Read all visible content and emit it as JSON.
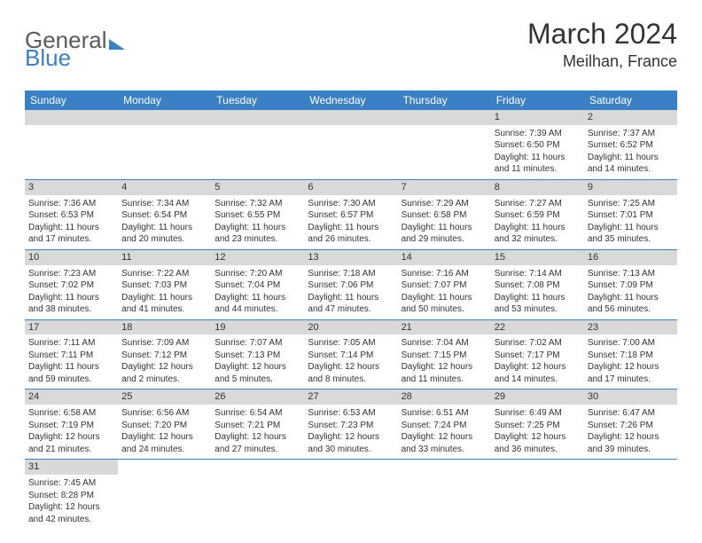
{
  "brand": {
    "part1": "General",
    "part2": "Blue"
  },
  "title": "March 2024",
  "location": "Meilhan, France",
  "colors": {
    "header_bg": "#3b7fc4",
    "header_fg": "#ffffff",
    "daynum_bg": "#d9d9d9",
    "rule": "#3b7fc4",
    "text": "#333333"
  },
  "day_headers": [
    "Sunday",
    "Monday",
    "Tuesday",
    "Wednesday",
    "Thursday",
    "Friday",
    "Saturday"
  ],
  "weeks": [
    [
      null,
      null,
      null,
      null,
      null,
      {
        "n": "1",
        "sr": "Sunrise: 7:39 AM",
        "ss": "Sunset: 6:50 PM",
        "d1": "Daylight: 11 hours",
        "d2": "and 11 minutes."
      },
      {
        "n": "2",
        "sr": "Sunrise: 7:37 AM",
        "ss": "Sunset: 6:52 PM",
        "d1": "Daylight: 11 hours",
        "d2": "and 14 minutes."
      }
    ],
    [
      {
        "n": "3",
        "sr": "Sunrise: 7:36 AM",
        "ss": "Sunset: 6:53 PM",
        "d1": "Daylight: 11 hours",
        "d2": "and 17 minutes."
      },
      {
        "n": "4",
        "sr": "Sunrise: 7:34 AM",
        "ss": "Sunset: 6:54 PM",
        "d1": "Daylight: 11 hours",
        "d2": "and 20 minutes."
      },
      {
        "n": "5",
        "sr": "Sunrise: 7:32 AM",
        "ss": "Sunset: 6:55 PM",
        "d1": "Daylight: 11 hours",
        "d2": "and 23 minutes."
      },
      {
        "n": "6",
        "sr": "Sunrise: 7:30 AM",
        "ss": "Sunset: 6:57 PM",
        "d1": "Daylight: 11 hours",
        "d2": "and 26 minutes."
      },
      {
        "n": "7",
        "sr": "Sunrise: 7:29 AM",
        "ss": "Sunset: 6:58 PM",
        "d1": "Daylight: 11 hours",
        "d2": "and 29 minutes."
      },
      {
        "n": "8",
        "sr": "Sunrise: 7:27 AM",
        "ss": "Sunset: 6:59 PM",
        "d1": "Daylight: 11 hours",
        "d2": "and 32 minutes."
      },
      {
        "n": "9",
        "sr": "Sunrise: 7:25 AM",
        "ss": "Sunset: 7:01 PM",
        "d1": "Daylight: 11 hours",
        "d2": "and 35 minutes."
      }
    ],
    [
      {
        "n": "10",
        "sr": "Sunrise: 7:23 AM",
        "ss": "Sunset: 7:02 PM",
        "d1": "Daylight: 11 hours",
        "d2": "and 38 minutes."
      },
      {
        "n": "11",
        "sr": "Sunrise: 7:22 AM",
        "ss": "Sunset: 7:03 PM",
        "d1": "Daylight: 11 hours",
        "d2": "and 41 minutes."
      },
      {
        "n": "12",
        "sr": "Sunrise: 7:20 AM",
        "ss": "Sunset: 7:04 PM",
        "d1": "Daylight: 11 hours",
        "d2": "and 44 minutes."
      },
      {
        "n": "13",
        "sr": "Sunrise: 7:18 AM",
        "ss": "Sunset: 7:06 PM",
        "d1": "Daylight: 11 hours",
        "d2": "and 47 minutes."
      },
      {
        "n": "14",
        "sr": "Sunrise: 7:16 AM",
        "ss": "Sunset: 7:07 PM",
        "d1": "Daylight: 11 hours",
        "d2": "and 50 minutes."
      },
      {
        "n": "15",
        "sr": "Sunrise: 7:14 AM",
        "ss": "Sunset: 7:08 PM",
        "d1": "Daylight: 11 hours",
        "d2": "and 53 minutes."
      },
      {
        "n": "16",
        "sr": "Sunrise: 7:13 AM",
        "ss": "Sunset: 7:09 PM",
        "d1": "Daylight: 11 hours",
        "d2": "and 56 minutes."
      }
    ],
    [
      {
        "n": "17",
        "sr": "Sunrise: 7:11 AM",
        "ss": "Sunset: 7:11 PM",
        "d1": "Daylight: 11 hours",
        "d2": "and 59 minutes."
      },
      {
        "n": "18",
        "sr": "Sunrise: 7:09 AM",
        "ss": "Sunset: 7:12 PM",
        "d1": "Daylight: 12 hours",
        "d2": "and 2 minutes."
      },
      {
        "n": "19",
        "sr": "Sunrise: 7:07 AM",
        "ss": "Sunset: 7:13 PM",
        "d1": "Daylight: 12 hours",
        "d2": "and 5 minutes."
      },
      {
        "n": "20",
        "sr": "Sunrise: 7:05 AM",
        "ss": "Sunset: 7:14 PM",
        "d1": "Daylight: 12 hours",
        "d2": "and 8 minutes."
      },
      {
        "n": "21",
        "sr": "Sunrise: 7:04 AM",
        "ss": "Sunset: 7:15 PM",
        "d1": "Daylight: 12 hours",
        "d2": "and 11 minutes."
      },
      {
        "n": "22",
        "sr": "Sunrise: 7:02 AM",
        "ss": "Sunset: 7:17 PM",
        "d1": "Daylight: 12 hours",
        "d2": "and 14 minutes."
      },
      {
        "n": "23",
        "sr": "Sunrise: 7:00 AM",
        "ss": "Sunset: 7:18 PM",
        "d1": "Daylight: 12 hours",
        "d2": "and 17 minutes."
      }
    ],
    [
      {
        "n": "24",
        "sr": "Sunrise: 6:58 AM",
        "ss": "Sunset: 7:19 PM",
        "d1": "Daylight: 12 hours",
        "d2": "and 21 minutes."
      },
      {
        "n": "25",
        "sr": "Sunrise: 6:56 AM",
        "ss": "Sunset: 7:20 PM",
        "d1": "Daylight: 12 hours",
        "d2": "and 24 minutes."
      },
      {
        "n": "26",
        "sr": "Sunrise: 6:54 AM",
        "ss": "Sunset: 7:21 PM",
        "d1": "Daylight: 12 hours",
        "d2": "and 27 minutes."
      },
      {
        "n": "27",
        "sr": "Sunrise: 6:53 AM",
        "ss": "Sunset: 7:23 PM",
        "d1": "Daylight: 12 hours",
        "d2": "and 30 minutes."
      },
      {
        "n": "28",
        "sr": "Sunrise: 6:51 AM",
        "ss": "Sunset: 7:24 PM",
        "d1": "Daylight: 12 hours",
        "d2": "and 33 minutes."
      },
      {
        "n": "29",
        "sr": "Sunrise: 6:49 AM",
        "ss": "Sunset: 7:25 PM",
        "d1": "Daylight: 12 hours",
        "d2": "and 36 minutes."
      },
      {
        "n": "30",
        "sr": "Sunrise: 6:47 AM",
        "ss": "Sunset: 7:26 PM",
        "d1": "Daylight: 12 hours",
        "d2": "and 39 minutes."
      }
    ],
    [
      {
        "n": "31",
        "sr": "Sunrise: 7:45 AM",
        "ss": "Sunset: 8:28 PM",
        "d1": "Daylight: 12 hours",
        "d2": "and 42 minutes."
      },
      null,
      null,
      null,
      null,
      null,
      null
    ]
  ]
}
